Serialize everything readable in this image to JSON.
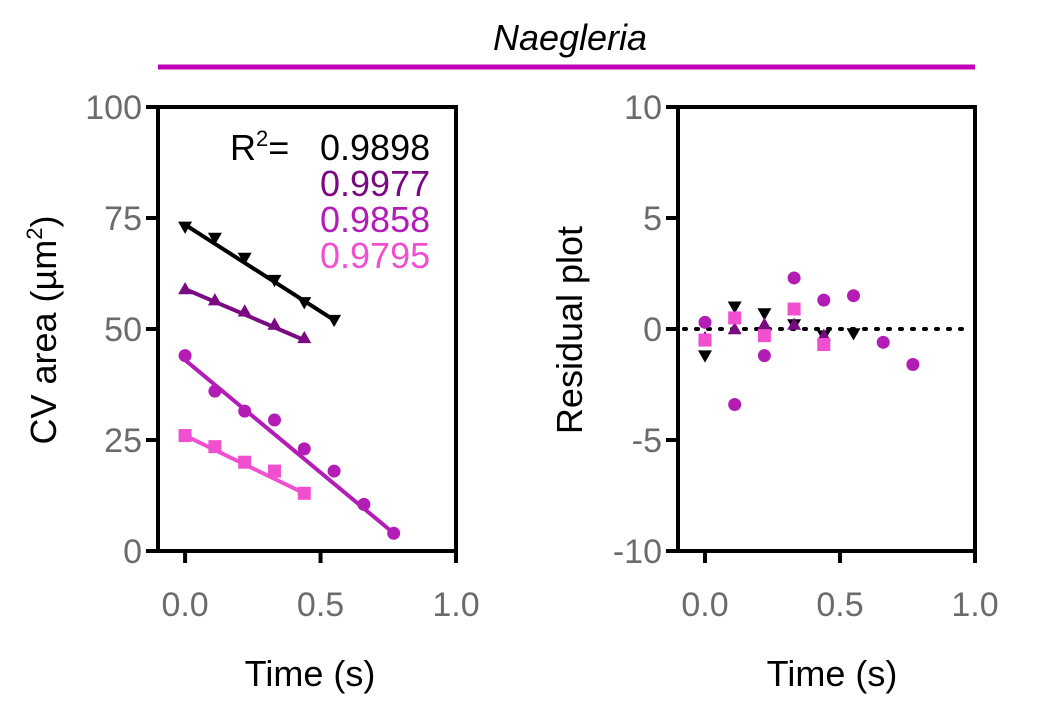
{
  "figure_title": "Naegleria",
  "colors": {
    "title_bar": "#c000b8",
    "axis": "#000000",
    "tick_text": "#6b6b6b",
    "black": "#000000",
    "dark_purple": "#7a0a82",
    "magenta": "#b31db6",
    "pink": "#f050d0"
  },
  "chart_data": [
    {
      "type": "scatter",
      "title": "",
      "xlabel": "Time (s)",
      "ylabel_pre": "CV area (µm",
      "ylabel_sup": "2",
      "ylabel_post": ")",
      "xlim": [
        -0.1,
        1.0
      ],
      "ylim": [
        0,
        100
      ],
      "xticks": [
        0.0,
        0.5,
        1.0
      ],
      "xtick_labels": [
        "0.0",
        "0.5",
        "1.0"
      ],
      "yticks": [
        0,
        25,
        50,
        75,
        100
      ],
      "ytick_labels": [
        "0",
        "25",
        "50",
        "75",
        "100"
      ],
      "r2_label": "R",
      "r2_sup": "2",
      "r2_eq": "=",
      "series": [
        {
          "name": "black",
          "color": "#000000",
          "marker": "triangle-down",
          "r2": "0.9898",
          "x": [
            0.0,
            0.11,
            0.22,
            0.33,
            0.44,
            0.55
          ],
          "y": [
            73,
            70.5,
            66,
            61,
            56,
            52
          ],
          "fit": [
            [
              0.0,
              73.5
            ],
            [
              0.55,
              52
            ]
          ]
        },
        {
          "name": "dark-purple",
          "color": "#7a0a82",
          "marker": "triangle-up",
          "r2": "0.9977",
          "x": [
            0.0,
            0.11,
            0.22,
            0.33,
            0.44
          ],
          "y": [
            59,
            56.5,
            54,
            51,
            48
          ],
          "fit": [
            [
              0.0,
              59
            ],
            [
              0.44,
              47.5
            ]
          ]
        },
        {
          "name": "magenta",
          "color": "#b31db6",
          "marker": "circle",
          "r2": "0.9858",
          "x": [
            0.0,
            0.11,
            0.22,
            0.33,
            0.44,
            0.55,
            0.66,
            0.77
          ],
          "y": [
            44,
            36,
            31.5,
            29.5,
            23,
            18,
            10.5,
            4
          ],
          "fit": [
            [
              0.0,
              43
            ],
            [
              0.77,
              4
            ]
          ]
        },
        {
          "name": "pink",
          "color": "#f050d0",
          "marker": "square",
          "r2": "0.9795",
          "x": [
            0.0,
            0.11,
            0.22,
            0.33,
            0.44
          ],
          "y": [
            26,
            23.5,
            20,
            18,
            13
          ],
          "fit": [
            [
              0.0,
              26
            ],
            [
              0.44,
              13
            ]
          ]
        }
      ]
    },
    {
      "type": "scatter",
      "title": "",
      "xlabel": "Time (s)",
      "ylabel": "Residual plot",
      "xlim": [
        -0.1,
        1.0
      ],
      "ylim": [
        -10,
        10
      ],
      "xticks": [
        0.0,
        0.5,
        1.0
      ],
      "xtick_labels": [
        "0.0",
        "0.5",
        "1.0"
      ],
      "yticks": [
        -10,
        -5,
        0,
        5,
        10
      ],
      "ytick_labels": [
        "-10",
        "-5",
        "0",
        "5",
        "10"
      ],
      "zero_line": true,
      "series": [
        {
          "name": "black",
          "color": "#000000",
          "marker": "triangle-down",
          "x": [
            0.0,
            0.11,
            0.22,
            0.33,
            0.44,
            0.55
          ],
          "y": [
            -1.2,
            1.0,
            0.7,
            0.2,
            -0.3,
            -0.2
          ]
        },
        {
          "name": "dark-purple",
          "color": "#7a0a82",
          "marker": "triangle-up",
          "x": [
            0.0,
            0.11,
            0.22,
            0.33,
            0.44
          ],
          "y": [
            -0.4,
            0.0,
            0.2,
            0.2,
            -0.3
          ]
        },
        {
          "name": "magenta",
          "color": "#b31db6",
          "marker": "circle",
          "x": [
            0.0,
            0.11,
            0.22,
            0.33,
            0.44,
            0.55,
            0.66,
            0.77
          ],
          "y": [
            0.3,
            -3.4,
            -1.2,
            2.3,
            1.3,
            1.5,
            -0.6,
            -1.6
          ]
        },
        {
          "name": "pink",
          "color": "#f050d0",
          "marker": "square",
          "x": [
            0.0,
            0.11,
            0.22,
            0.33,
            0.44
          ],
          "y": [
            -0.5,
            0.5,
            -0.3,
            0.9,
            -0.7
          ]
        }
      ]
    }
  ]
}
